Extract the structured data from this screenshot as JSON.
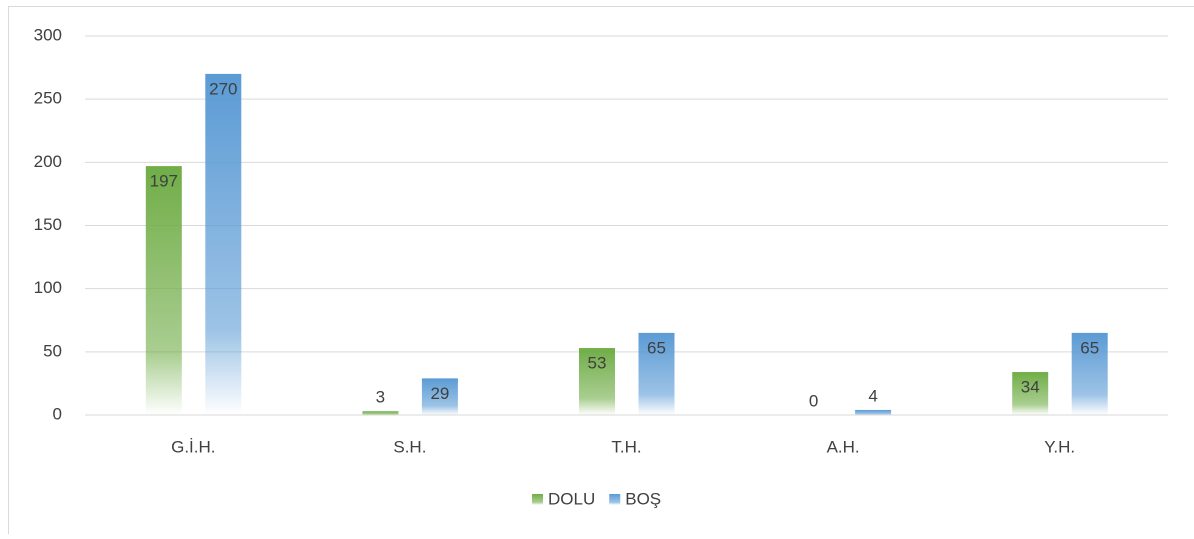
{
  "chart_data": {
    "type": "bar",
    "categories": [
      "G.İ.H.",
      "S.H.",
      "T.H.",
      "A.H.",
      "Y.H."
    ],
    "series": [
      {
        "name": "DOLU",
        "color": "#70ad47",
        "values": [
          197,
          3,
          53,
          0,
          34
        ]
      },
      {
        "name": "BOŞ",
        "color": "#5b9bd5",
        "values": [
          270,
          29,
          65,
          4,
          65
        ]
      }
    ],
    "ylim": [
      0,
      300
    ],
    "yticks": [
      0,
      50,
      100,
      150,
      200,
      250,
      300
    ],
    "grid": true,
    "legend": "bottom"
  }
}
